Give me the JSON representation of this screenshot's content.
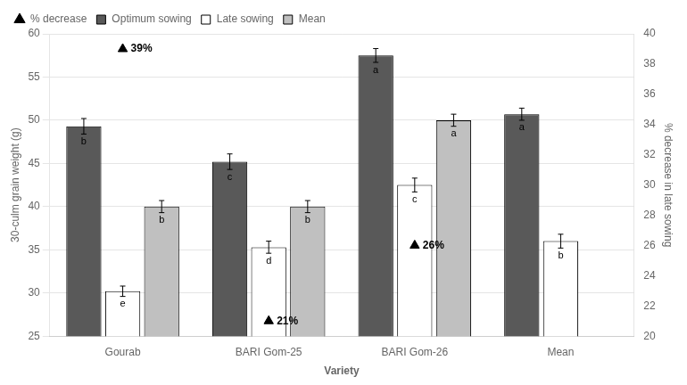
{
  "chart_data": {
    "type": "bar",
    "categories": [
      "Gourab",
      "BARI Gom-25",
      "BARI Gom-26",
      "Mean"
    ],
    "xlabel": "Variety",
    "ylabel": "30-culm grain weight (g)",
    "y2label": "% decrease in late sowing",
    "ylim": [
      25,
      60
    ],
    "yticks": [
      25,
      30,
      35,
      40,
      45,
      50,
      55,
      60
    ],
    "y2lim": [
      20,
      40
    ],
    "y2ticks": [
      20,
      22,
      24,
      26,
      28,
      30,
      32,
      34,
      36,
      38,
      40
    ],
    "grid": true,
    "legend": "upper left",
    "series": [
      {
        "name": "Optimum sowing",
        "color": "#595959",
        "values": [
          49.3,
          45.2,
          57.5,
          50.7
        ],
        "errors": [
          0.9,
          0.9,
          0.8,
          0.7
        ],
        "bar_labels": [
          "b",
          "c",
          "a",
          "a"
        ]
      },
      {
        "name": "Late sowing",
        "color": "#ffffff",
        "values": [
          30.2,
          35.3,
          42.5,
          36.0
        ],
        "errors": [
          0.6,
          0.7,
          0.8,
          0.8
        ],
        "bar_labels": [
          "e",
          "d",
          "c",
          "b"
        ]
      },
      {
        "name": "Mean",
        "color": "#c0c0c0",
        "values": [
          40.0,
          40.0,
          50.0,
          null
        ],
        "errors": [
          0.7,
          0.7,
          0.7,
          null
        ],
        "bar_labels": [
          "b",
          "b",
          "a",
          null
        ]
      },
      {
        "name": "% decrease",
        "type": "scatter",
        "marker": "triangle",
        "color": "#000000",
        "axis": "y2",
        "values": [
          39,
          21,
          26,
          null
        ],
        "value_labels": [
          "39%",
          "21%",
          "26%",
          null
        ],
        "data_labels": true
      }
    ]
  }
}
